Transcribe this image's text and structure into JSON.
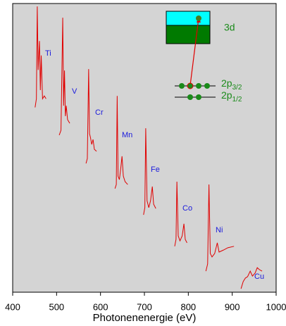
{
  "chart_data": {
    "type": "line",
    "x_label": "Photonenenergie (eV)",
    "xlim": [
      400,
      1000
    ],
    "xticks": [
      400,
      500,
      600,
      700,
      800,
      900,
      1000
    ],
    "ylim": [
      0,
      100
    ],
    "color": "#e00000",
    "label_color": "#1a1adc",
    "series": [
      {
        "name": "Ti",
        "x": [
          451,
          454,
          456,
          458,
          461,
          463,
          465,
          468,
          472,
          476
        ],
        "values": [
          64,
          67,
          99,
          77,
          87,
          70,
          82,
          67,
          68,
          67
        ]
      },
      {
        "name": "V",
        "x": [
          506,
          510,
          514,
          516,
          518,
          520,
          522,
          525,
          530
        ],
        "values": [
          54.4,
          56.1,
          95.1,
          64.6,
          76.8,
          61,
          64.6,
          59.8,
          58.5
        ]
      },
      {
        "name": "Cr",
        "x": [
          567,
          570,
          573,
          575,
          577,
          580,
          583,
          586,
          591
        ],
        "values": [
          44.6,
          46.3,
          77.3,
          54.9,
          53.7,
          51.2,
          52.9,
          49.5,
          48.8
        ]
      },
      {
        "name": "Mn",
        "x": [
          633,
          636,
          638,
          640,
          643,
          646,
          649,
          652,
          656,
          662
        ],
        "values": [
          35.9,
          37.3,
          68,
          40.2,
          39,
          42.7,
          47.1,
          40.2,
          38.3,
          37.3
        ]
      },
      {
        "name": "Fe",
        "x": [
          698,
          701,
          703,
          706,
          710,
          714,
          718,
          721,
          726
        ],
        "values": [
          26.8,
          29.3,
          56.8,
          31.7,
          29.3,
          31.7,
          36.6,
          30.5,
          29
        ]
      },
      {
        "name": "Co",
        "x": [
          769,
          772,
          774,
          777,
          781,
          786,
          790,
          793,
          797
        ],
        "values": [
          15.9,
          18.3,
          38.3,
          19.5,
          17.8,
          19.5,
          23.7,
          18.3,
          17.1
        ]
      },
      {
        "name": "Ni",
        "x": [
          840,
          844,
          847,
          850,
          854,
          860,
          866,
          870,
          880,
          890,
          904
        ],
        "values": [
          7.3,
          9.8,
          37.3,
          13.4,
          12.2,
          13.4,
          17.1,
          13.9,
          14.6,
          15.4,
          15.9
        ]
      },
      {
        "name": "Cu",
        "x": [
          920,
          925,
          930,
          935,
          941,
          946,
          952,
          957,
          962,
          968
        ],
        "values": [
          1.2,
          3.7,
          4.9,
          5.4,
          7.3,
          5.6,
          6.6,
          8.5,
          7.8,
          7.3
        ]
      }
    ],
    "inset": {
      "band": "3d",
      "levels": [
        {
          "name": "2p",
          "sub": "3/2"
        },
        {
          "name": "2p",
          "sub": "1/2"
        }
      ]
    }
  }
}
